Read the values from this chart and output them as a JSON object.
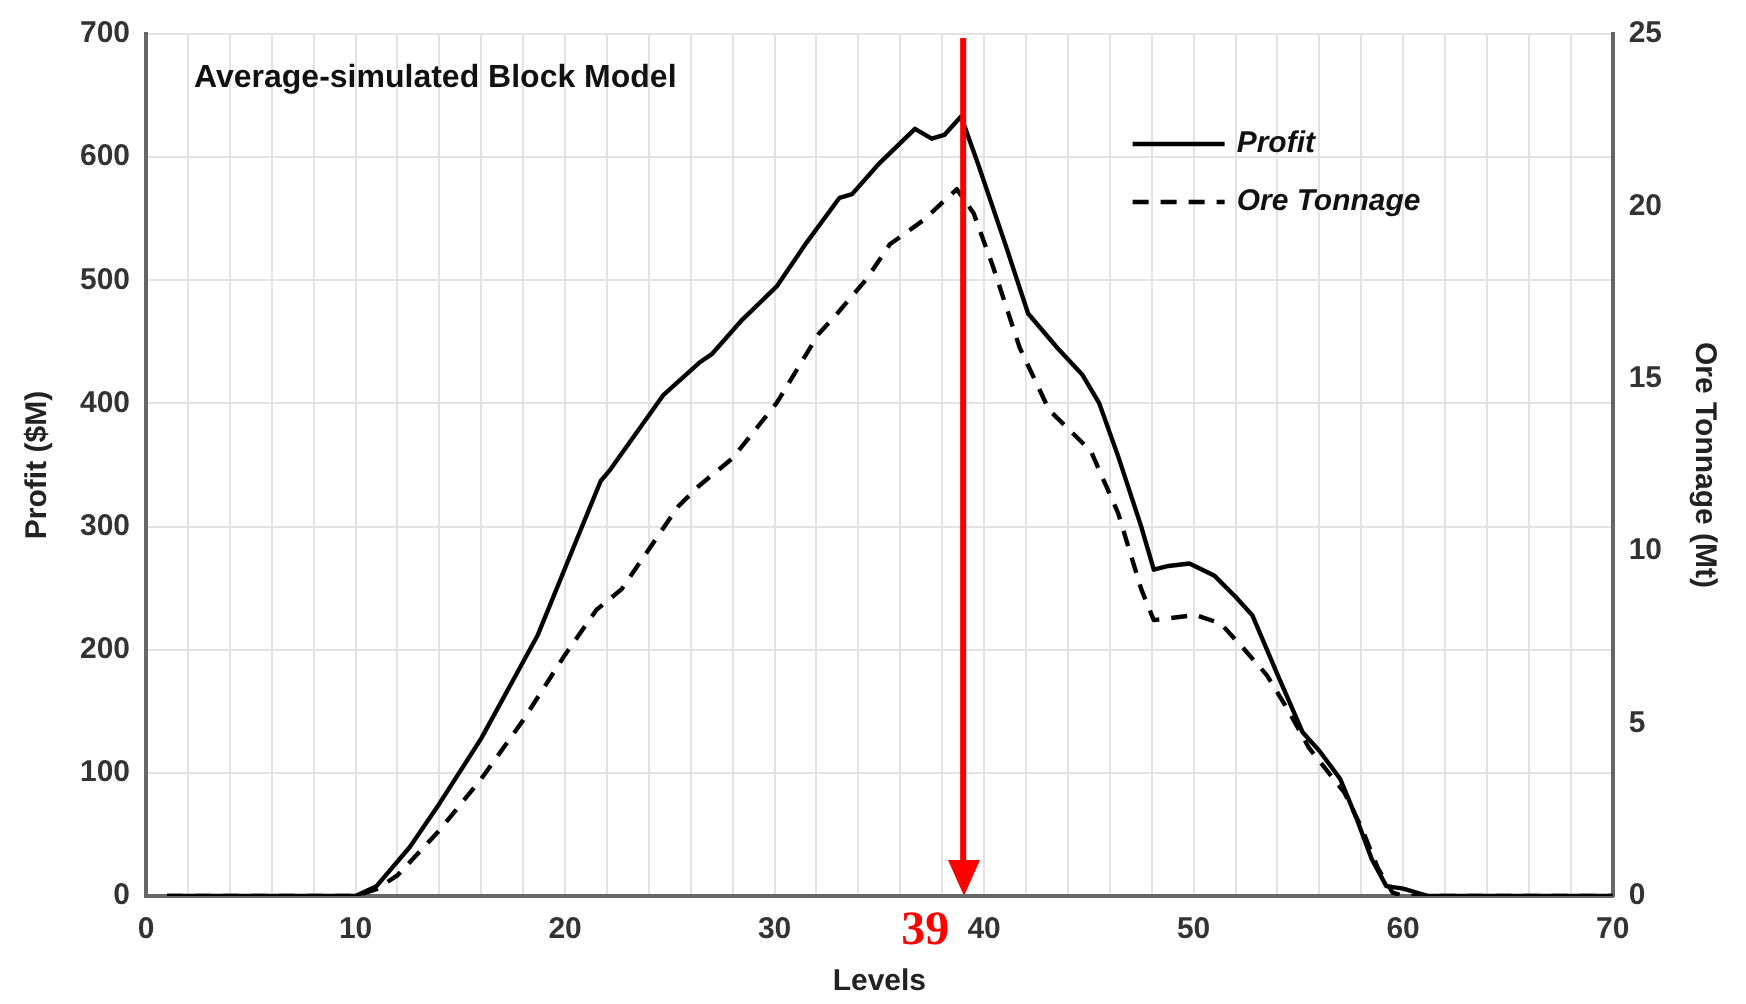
{
  "chart_data": {
    "type": "line",
    "title": "Average-simulated Block Model",
    "xlabel": "Levels",
    "ylabel": "Profit ($M)",
    "y2label": "Ore Tonnage (Mt)",
    "xlim": [
      0,
      70
    ],
    "xticks": [
      0,
      {
        "value": 2,
        "label": null
      },
      {
        "value": 4,
        "label": null
      },
      {
        "value": 6,
        "label": null
      },
      {
        "value": 8,
        "label": null
      },
      10,
      {
        "value": 12,
        "label": null
      },
      {
        "value": 14,
        "label": null
      },
      {
        "value": 16,
        "label": null
      },
      {
        "value": 18,
        "label": null
      },
      20,
      {
        "value": 22,
        "label": null
      },
      {
        "value": 24,
        "label": null
      },
      {
        "value": 26,
        "label": null
      },
      {
        "value": 28,
        "label": null
      },
      30,
      {
        "value": 32,
        "label": null
      },
      {
        "value": 34,
        "label": null
      },
      {
        "value": 36,
        "label": null
      },
      {
        "value": 38,
        "label": null
      },
      40,
      {
        "value": 42,
        "label": null
      },
      {
        "value": 44,
        "label": null
      },
      {
        "value": 46,
        "label": null
      },
      {
        "value": 48,
        "label": null
      },
      50,
      {
        "value": 52,
        "label": null
      },
      {
        "value": 54,
        "label": null
      },
      {
        "value": 56,
        "label": null
      },
      {
        "value": 58,
        "label": null
      },
      60,
      {
        "value": 62,
        "label": null
      },
      {
        "value": 64,
        "label": null
      },
      {
        "value": 66,
        "label": null
      },
      {
        "value": 68,
        "label": null
      },
      70
    ],
    "ylim": [
      0,
      700
    ],
    "yticks": [
      0,
      100,
      200,
      300,
      400,
      500,
      600,
      700
    ],
    "y2lim": [
      0,
      25
    ],
    "y2ticks": [
      0,
      5,
      10,
      15,
      20,
      25
    ],
    "grid": true,
    "legend": "top right",
    "marker": "none",
    "series": [
      {
        "name": "Profit",
        "color": "#000000",
        "line_style": "solid",
        "x": [
          1,
          10,
          11,
          12.6,
          14,
          16,
          18.7,
          20.4,
          21.7,
          22.1,
          24.7,
          26.4,
          27,
          28.4,
          30.1,
          31.5,
          33.1,
          33.7,
          35,
          36.7,
          37.5,
          38.1,
          38.9,
          39.7,
          41,
          42.1,
          43.5,
          44.7,
          45.5,
          46.4,
          47.5,
          48.1,
          48.8,
          49.8,
          51,
          52,
          52.8,
          54,
          55.2,
          56,
          57,
          57.8,
          58.5,
          59.2,
          60,
          61.2,
          70
        ],
        "values": [
          0,
          0,
          8,
          40,
          75,
          128,
          212,
          283,
          337,
          345,
          407,
          433,
          440,
          467,
          495,
          530,
          567,
          570,
          595,
          623,
          615,
          618,
          633,
          595,
          530,
          473,
          445,
          423,
          400,
          357,
          300,
          265,
          268,
          270,
          260,
          243,
          228,
          180,
          133,
          118,
          95,
          62,
          30,
          8,
          6,
          0,
          0
        ]
      },
      {
        "name": "Ore Tonnage",
        "color": "#000000",
        "line_style": "dashed",
        "axis": "y2",
        "x": [
          1,
          10,
          11,
          12,
          14,
          16,
          18,
          20,
          21.5,
          22.7,
          25.4,
          26.4,
          28,
          30.1,
          32.1,
          33,
          34.4,
          35.5,
          37.1,
          38.7,
          39.5,
          40.4,
          41.7,
          43.1,
          45.1,
          46.4,
          47.5,
          48.1,
          50.1,
          51.3,
          52.5,
          53.5,
          54.5,
          55.5,
          57.2,
          58,
          58.8,
          59.5,
          60,
          70
        ],
        "values": [
          0,
          0,
          0.2,
          0.6,
          1.9,
          3.4,
          5.1,
          7.0,
          8.3,
          8.9,
          11.3,
          11.9,
          12.7,
          14.3,
          16.3,
          16.9,
          17.9,
          18.9,
          19.6,
          20.5,
          19.8,
          18.3,
          15.9,
          14.1,
          12.9,
          11.1,
          8.9,
          8.0,
          8.15,
          7.9,
          7.1,
          6.4,
          5.4,
          4.3,
          3.0,
          2.0,
          0.8,
          0.1,
          0,
          0
        ]
      }
    ],
    "ref_lines": [
      {
        "axis": "x",
        "value": 39,
        "label": "39",
        "color": "#ff0000"
      }
    ]
  }
}
